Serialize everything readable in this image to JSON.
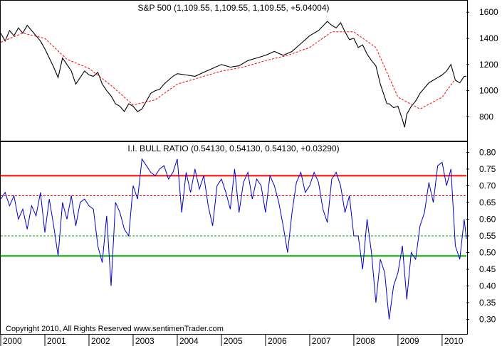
{
  "chart_data": [
    {
      "type": "line",
      "title": "S&P 500 (1,109.55, 1,109.55, 1,109.55, +5.04004)",
      "ylim": [
        650,
        1650
      ],
      "yticks": [
        "1600",
        "1400",
        "1200",
        "1000",
        "800"
      ],
      "ytick_values": [
        1600,
        1400,
        1200,
        1000,
        800
      ],
      "x_range": [
        2000.0,
        2010.55
      ],
      "grid": false,
      "series": [
        {
          "style": "solid",
          "color": "#000000",
          "x": [
            2000.0,
            2000.1,
            2000.2,
            2000.3,
            2000.4,
            2000.5,
            2000.6,
            2000.7,
            2000.8,
            2000.9,
            2001.0,
            2001.1,
            2001.2,
            2001.3,
            2001.4,
            2001.5,
            2001.6,
            2001.7,
            2001.8,
            2001.9,
            2002.0,
            2002.1,
            2002.2,
            2002.3,
            2002.4,
            2002.5,
            2002.6,
            2002.7,
            2002.8,
            2002.9,
            2003.0,
            2003.1,
            2003.2,
            2003.3,
            2003.4,
            2003.5,
            2003.6,
            2003.7,
            2003.8,
            2003.9,
            2004.0,
            2004.2,
            2004.4,
            2004.6,
            2004.8,
            2005.0,
            2005.2,
            2005.4,
            2005.6,
            2005.8,
            2006.0,
            2006.2,
            2006.4,
            2006.6,
            2006.8,
            2007.0,
            2007.2,
            2007.4,
            2007.5,
            2007.6,
            2007.7,
            2007.8,
            2007.9,
            2008.0,
            2008.1,
            2008.2,
            2008.3,
            2008.4,
            2008.5,
            2008.6,
            2008.7,
            2008.75,
            2008.8,
            2008.9,
            2009.0,
            2009.1,
            2009.15,
            2009.2,
            2009.3,
            2009.4,
            2009.5,
            2009.6,
            2009.7,
            2009.8,
            2009.9,
            2010.0,
            2010.1,
            2010.2,
            2010.3,
            2010.4,
            2010.5,
            2010.55
          ],
          "values": [
            1440,
            1380,
            1460,
            1420,
            1480,
            1440,
            1500,
            1460,
            1420,
            1380,
            1320,
            1250,
            1180,
            1100,
            1250,
            1200,
            1150,
            1050,
            1100,
            1150,
            1120,
            1110,
            1140,
            1050,
            1000,
            960,
            900,
            880,
            840,
            900,
            880,
            840,
            860,
            920,
            980,
            1000,
            1010,
            1050,
            1080,
            1110,
            1130,
            1120,
            1110,
            1140,
            1170,
            1200,
            1180,
            1190,
            1230,
            1250,
            1270,
            1300,
            1270,
            1300,
            1360,
            1420,
            1460,
            1530,
            1500,
            1480,
            1520,
            1450,
            1390,
            1400,
            1330,
            1350,
            1280,
            1230,
            1190,
            1050,
            950,
            900,
            900,
            870,
            880,
            780,
            720,
            820,
            880,
            920,
            980,
            1020,
            1060,
            1080,
            1100,
            1120,
            1150,
            1200,
            1080,
            1060,
            1110,
            1109.55
          ]
        },
        {
          "style": "dashed",
          "color": "#ff0000",
          "x": [
            2000.0,
            2000.5,
            2001.0,
            2001.5,
            2002.0,
            2002.5,
            2003.0,
            2003.5,
            2004.0,
            2004.5,
            2005.0,
            2005.5,
            2006.0,
            2006.5,
            2007.0,
            2007.5,
            2008.0,
            2008.5,
            2009.0,
            2009.5,
            2010.0,
            2010.3
          ],
          "values": [
            1370,
            1440,
            1400,
            1240,
            1170,
            1040,
            890,
            930,
            1050,
            1100,
            1150,
            1180,
            1230,
            1270,
            1330,
            1450,
            1450,
            1330,
            950,
            860,
            950,
            1090
          ]
        }
      ]
    },
    {
      "type": "line",
      "title": "I.I. BULL RATIO (0.54130, 0.54130, 0.54130, +0.03290)",
      "ylim": [
        0.265,
        0.82
      ],
      "yticks": [
        "0.80",
        "0.75",
        "0.70",
        "0.65",
        "0.60",
        "0.55",
        "0.50",
        "0.45",
        "0.40",
        "0.35",
        "0.30"
      ],
      "ytick_values": [
        0.8,
        0.75,
        0.7,
        0.65,
        0.6,
        0.55,
        0.5,
        0.45,
        0.4,
        0.35,
        0.3
      ],
      "x_range": [
        2000.0,
        2010.55
      ],
      "xticks": [
        "2000",
        "2001",
        "2002",
        "2003",
        "2004",
        "2005",
        "2006",
        "2007",
        "2008",
        "2009",
        "2010"
      ],
      "xtick_values": [
        2000,
        2001,
        2002,
        2003,
        2004,
        2005,
        2006,
        2007,
        2008,
        2009,
        2010
      ],
      "grid": false,
      "reference_lines": [
        {
          "value": 0.73,
          "color": "#ff0000",
          "style": "solid"
        },
        {
          "value": 0.67,
          "color": "#ff0000",
          "style": "dashed"
        },
        {
          "value": 0.55,
          "color": "#00aa00",
          "style": "dashed"
        },
        {
          "value": 0.49,
          "color": "#00aa00",
          "style": "solid"
        }
      ],
      "series": [
        {
          "style": "solid",
          "color": "#0000cc",
          "x": [
            2000.0,
            2000.1,
            2000.2,
            2000.3,
            2000.4,
            2000.5,
            2000.6,
            2000.7,
            2000.8,
            2000.9,
            2001.0,
            2001.1,
            2001.2,
            2001.3,
            2001.4,
            2001.5,
            2001.6,
            2001.7,
            2001.8,
            2001.9,
            2002.0,
            2002.1,
            2002.2,
            2002.3,
            2002.4,
            2002.5,
            2002.6,
            2002.7,
            2002.8,
            2002.9,
            2003.0,
            2003.1,
            2003.2,
            2003.3,
            2003.4,
            2003.5,
            2003.6,
            2003.7,
            2003.8,
            2003.9,
            2004.0,
            2004.1,
            2004.2,
            2004.3,
            2004.4,
            2004.5,
            2004.6,
            2004.7,
            2004.8,
            2004.9,
            2005.0,
            2005.1,
            2005.2,
            2005.3,
            2005.4,
            2005.5,
            2005.6,
            2005.7,
            2005.8,
            2005.9,
            2006.0,
            2006.1,
            2006.2,
            2006.3,
            2006.4,
            2006.5,
            2006.6,
            2006.7,
            2006.8,
            2006.9,
            2007.0,
            2007.1,
            2007.2,
            2007.3,
            2007.4,
            2007.5,
            2007.6,
            2007.7,
            2007.8,
            2007.9,
            2008.0,
            2008.1,
            2008.2,
            2008.3,
            2008.4,
            2008.5,
            2008.6,
            2008.7,
            2008.8,
            2008.9,
            2009.0,
            2009.1,
            2009.2,
            2009.3,
            2009.4,
            2009.5,
            2009.6,
            2009.7,
            2009.8,
            2009.9,
            2010.0,
            2010.1,
            2010.2,
            2010.3,
            2010.4,
            2010.5,
            2010.55
          ],
          "values": [
            0.66,
            0.68,
            0.64,
            0.67,
            0.6,
            0.63,
            0.57,
            0.64,
            0.61,
            0.68,
            0.56,
            0.66,
            0.58,
            0.49,
            0.65,
            0.6,
            0.67,
            0.58,
            0.65,
            0.66,
            0.64,
            0.63,
            0.52,
            0.47,
            0.61,
            0.4,
            0.65,
            0.62,
            0.57,
            0.55,
            0.7,
            0.66,
            0.78,
            0.76,
            0.74,
            0.73,
            0.75,
            0.76,
            0.72,
            0.74,
            0.78,
            0.62,
            0.74,
            0.68,
            0.75,
            0.69,
            0.73,
            0.64,
            0.58,
            0.7,
            0.72,
            0.68,
            0.63,
            0.75,
            0.62,
            0.71,
            0.74,
            0.66,
            0.72,
            0.7,
            0.62,
            0.73,
            0.7,
            0.65,
            0.58,
            0.5,
            0.62,
            0.71,
            0.74,
            0.68,
            0.7,
            0.74,
            0.71,
            0.63,
            0.59,
            0.72,
            0.74,
            0.7,
            0.62,
            0.67,
            0.55,
            0.55,
            0.45,
            0.6,
            0.5,
            0.35,
            0.48,
            0.44,
            0.3,
            0.4,
            0.44,
            0.52,
            0.36,
            0.5,
            0.48,
            0.58,
            0.62,
            0.71,
            0.65,
            0.76,
            0.77,
            0.7,
            0.75,
            0.52,
            0.48,
            0.6,
            0.5413
          ]
        }
      ]
    }
  ],
  "footer": {
    "copyright": "Copyright 2010, All Rights Reserved  www.sentimenTrader.com"
  }
}
